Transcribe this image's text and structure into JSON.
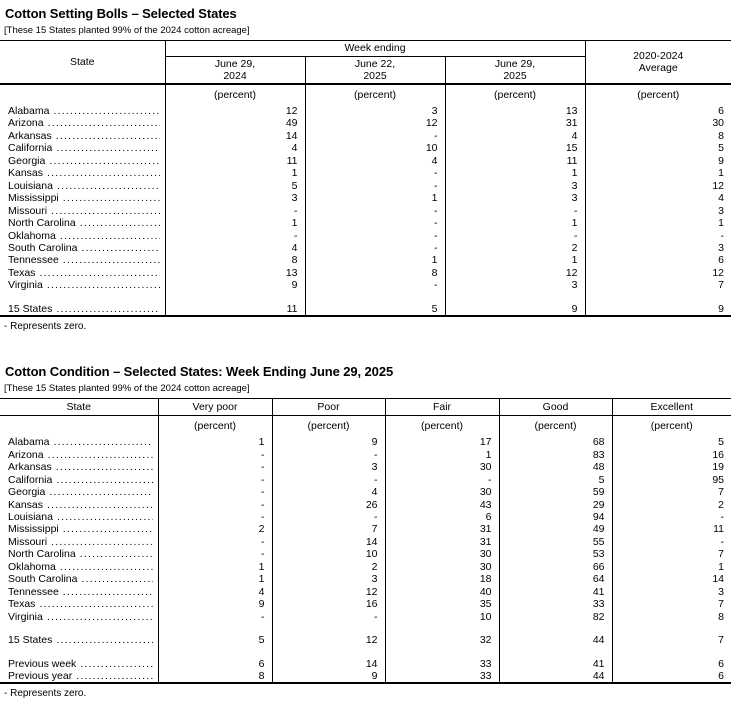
{
  "table1": {
    "title": "Cotton Setting Bolls – Selected States",
    "subtitle": "[These 15 States planted 99% of the 2024 cotton acreage]",
    "state_header": "State",
    "col_group_header": "Week ending",
    "week_cols": [
      "June 29,\n2024",
      "June 22,\n2025",
      "June 29,\n2025"
    ],
    "avg_header": "2020-2024\nAverage",
    "unit": "(percent)",
    "rows": [
      {
        "label": "Alabama",
        "values": [
          "12",
          "3",
          "13",
          "6"
        ]
      },
      {
        "label": "Arizona",
        "values": [
          "49",
          "12",
          "31",
          "30"
        ]
      },
      {
        "label": "Arkansas",
        "values": [
          "14",
          "-",
          "4",
          "8"
        ]
      },
      {
        "label": "California",
        "values": [
          "4",
          "10",
          "15",
          "5"
        ]
      },
      {
        "label": "Georgia",
        "values": [
          "11",
          "4",
          "11",
          "9"
        ]
      },
      {
        "label": "Kansas",
        "values": [
          "1",
          "-",
          "1",
          "1"
        ]
      },
      {
        "label": "Louisiana",
        "values": [
          "5",
          "-",
          "3",
          "12"
        ]
      },
      {
        "label": "Mississippi",
        "values": [
          "3",
          "1",
          "3",
          "4"
        ]
      },
      {
        "label": "Missouri",
        "values": [
          "-",
          "-",
          "-",
          "3"
        ]
      },
      {
        "label": "North Carolina",
        "values": [
          "1",
          "-",
          "1",
          "1"
        ]
      },
      {
        "label": "Oklahoma",
        "values": [
          "-",
          "-",
          "-",
          "-"
        ]
      },
      {
        "label": "South Carolina",
        "values": [
          "4",
          "-",
          "2",
          "3"
        ]
      },
      {
        "label": "Tennessee",
        "values": [
          "8",
          "1",
          "1",
          "6"
        ]
      },
      {
        "label": "Texas",
        "values": [
          "13",
          "8",
          "12",
          "12"
        ]
      },
      {
        "label": "Virginia",
        "values": [
          "9",
          "-",
          "3",
          "7"
        ]
      }
    ],
    "total_row": {
      "label": "15 States",
      "values": [
        "11",
        "5",
        "9",
        "9"
      ]
    },
    "footnote": "- Represents zero."
  },
  "table2": {
    "title": "Cotton Condition – Selected States: Week Ending June 29, 2025",
    "subtitle": "[These 15 States planted 99% of the 2024 cotton acreage]",
    "state_header": "State",
    "columns": [
      "Very poor",
      "Poor",
      "Fair",
      "Good",
      "Excellent"
    ],
    "unit": "(percent)",
    "rows": [
      {
        "label": "Alabama",
        "values": [
          "1",
          "9",
          "17",
          "68",
          "5"
        ]
      },
      {
        "label": "Arizona",
        "values": [
          "-",
          "-",
          "1",
          "83",
          "16"
        ]
      },
      {
        "label": "Arkansas",
        "values": [
          "-",
          "3",
          "30",
          "48",
          "19"
        ]
      },
      {
        "label": "California",
        "values": [
          "-",
          "-",
          "-",
          "5",
          "95"
        ]
      },
      {
        "label": "Georgia",
        "values": [
          "-",
          "4",
          "30",
          "59",
          "7"
        ]
      },
      {
        "label": "Kansas",
        "values": [
          "-",
          "26",
          "43",
          "29",
          "2"
        ]
      },
      {
        "label": "Louisiana",
        "values": [
          "-",
          "-",
          "6",
          "94",
          "-"
        ]
      },
      {
        "label": "Mississippi",
        "values": [
          "2",
          "7",
          "31",
          "49",
          "11"
        ]
      },
      {
        "label": "Missouri",
        "values": [
          "-",
          "14",
          "31",
          "55",
          "-"
        ]
      },
      {
        "label": "North Carolina",
        "values": [
          "-",
          "10",
          "30",
          "53",
          "7"
        ]
      },
      {
        "label": "Oklahoma",
        "values": [
          "1",
          "2",
          "30",
          "66",
          "1"
        ]
      },
      {
        "label": "South Carolina",
        "values": [
          "1",
          "3",
          "18",
          "64",
          "14"
        ]
      },
      {
        "label": "Tennessee",
        "values": [
          "4",
          "12",
          "40",
          "41",
          "3"
        ]
      },
      {
        "label": "Texas",
        "values": [
          "9",
          "16",
          "35",
          "33",
          "7"
        ]
      },
      {
        "label": "Virginia",
        "values": [
          "-",
          "-",
          "10",
          "82",
          "8"
        ]
      }
    ],
    "total_row": {
      "label": "15 States",
      "values": [
        "5",
        "12",
        "32",
        "44",
        "7"
      ]
    },
    "extra_rows": [
      {
        "label": "Previous week",
        "values": [
          "6",
          "14",
          "33",
          "41",
          "6"
        ]
      },
      {
        "label": "Previous year",
        "values": [
          "8",
          "9",
          "33",
          "44",
          "6"
        ]
      }
    ],
    "footnote": "- Represents zero."
  }
}
